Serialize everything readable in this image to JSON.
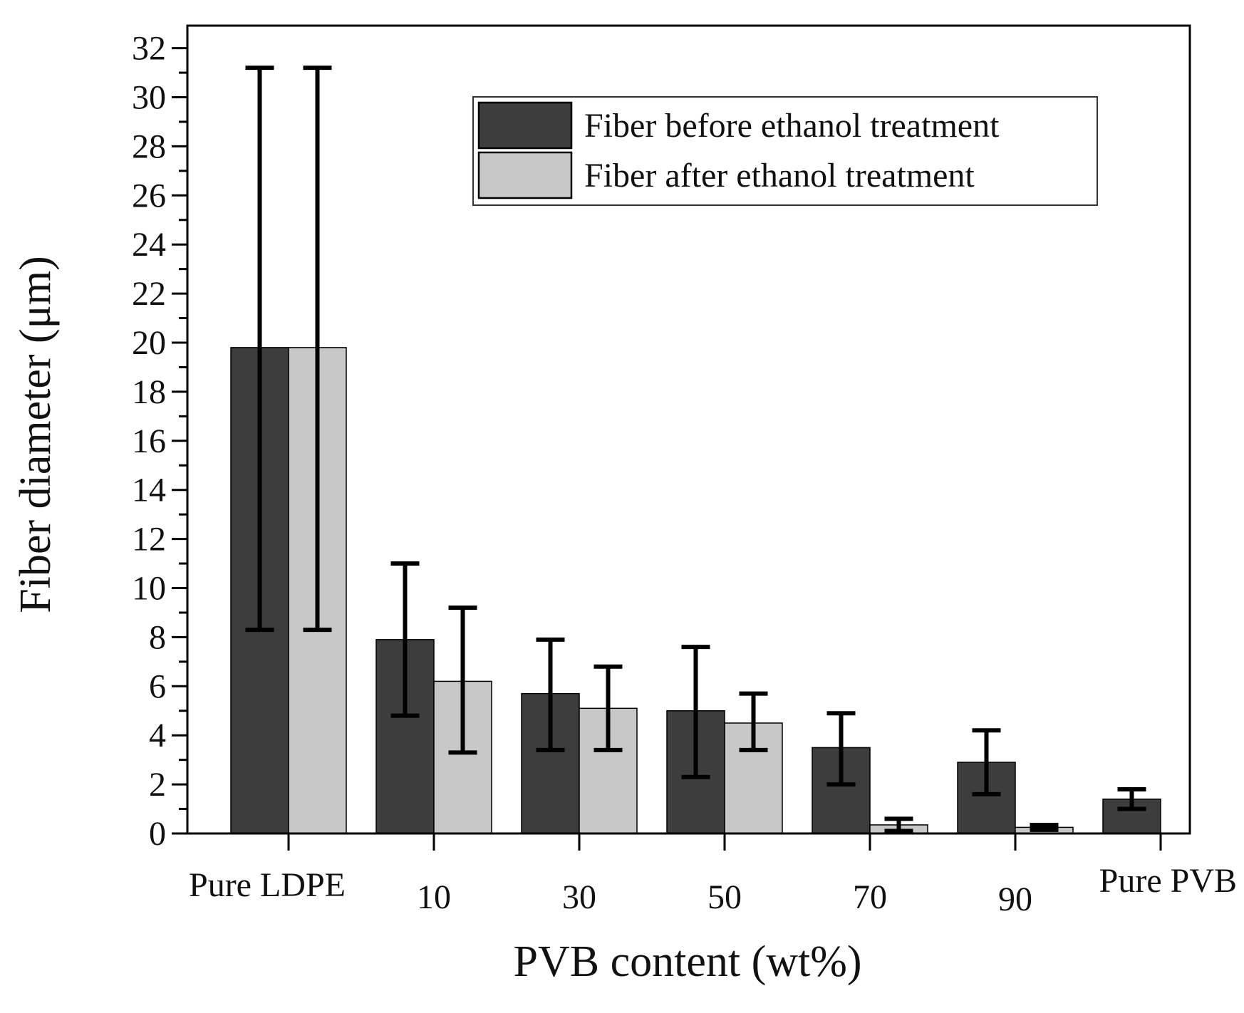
{
  "chart_data": {
    "type": "bar",
    "title": "",
    "xlabel": "PVB content (wt%)",
    "ylabel": "Fiber diameter (μm)",
    "ylim": [
      0,
      33
    ],
    "yticks": [
      0,
      2,
      4,
      6,
      8,
      10,
      12,
      14,
      16,
      18,
      20,
      22,
      24,
      26,
      28,
      30,
      32
    ],
    "categories": [
      "Pure LDPE",
      "10",
      "30",
      "50",
      "70",
      "90",
      "Pure PVB"
    ],
    "series": [
      {
        "name": "Fiber before ethanol treatment",
        "color": "#3d3d3d",
        "values": [
          19.8,
          7.9,
          5.7,
          5.0,
          3.5,
          2.9,
          1.4
        ],
        "err_low": [
          8.3,
          4.8,
          3.4,
          2.3,
          2.0,
          1.6,
          1.0
        ],
        "err_high": [
          31.2,
          11.0,
          7.9,
          7.6,
          4.9,
          4.2,
          1.8
        ]
      },
      {
        "name": "Fiber after ethanol treatment",
        "color": "#c8c8c8",
        "values": [
          19.8,
          6.2,
          5.1,
          4.5,
          0.35,
          0.25,
          null
        ],
        "err_low": [
          8.3,
          3.3,
          3.4,
          3.4,
          0.1,
          0.15,
          null
        ],
        "err_high": [
          31.2,
          9.2,
          6.8,
          5.7,
          0.6,
          0.35,
          null
        ]
      }
    ],
    "legend": {
      "placement": "top-right",
      "entries": [
        "Fiber before ethanol treatment",
        "Fiber after ethanol treatment"
      ]
    }
  }
}
